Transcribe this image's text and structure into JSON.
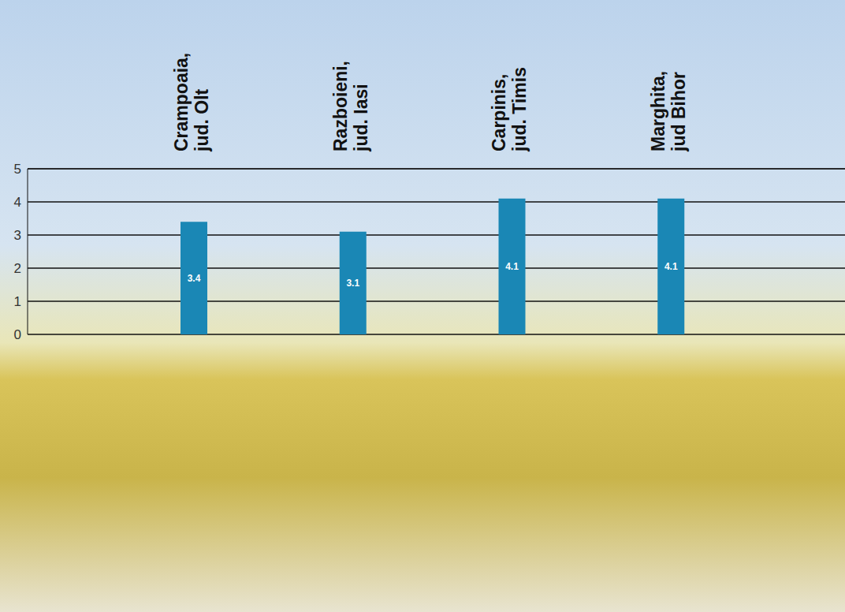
{
  "chart_data": {
    "type": "bar",
    "categories": [
      "Crampoaia, jud. Olt",
      "Razboieni, jud. Iasi",
      "Carpinis, jud. Timis",
      "Marghita, jud Bihor"
    ],
    "values": [
      3.4,
      3.1,
      4.1,
      4.1
    ],
    "color": "#1a87b5",
    "ylim": [
      0,
      5
    ],
    "yticks": [
      0,
      1,
      2,
      3,
      4,
      5
    ],
    "grid": true,
    "data_labels": true
  }
}
